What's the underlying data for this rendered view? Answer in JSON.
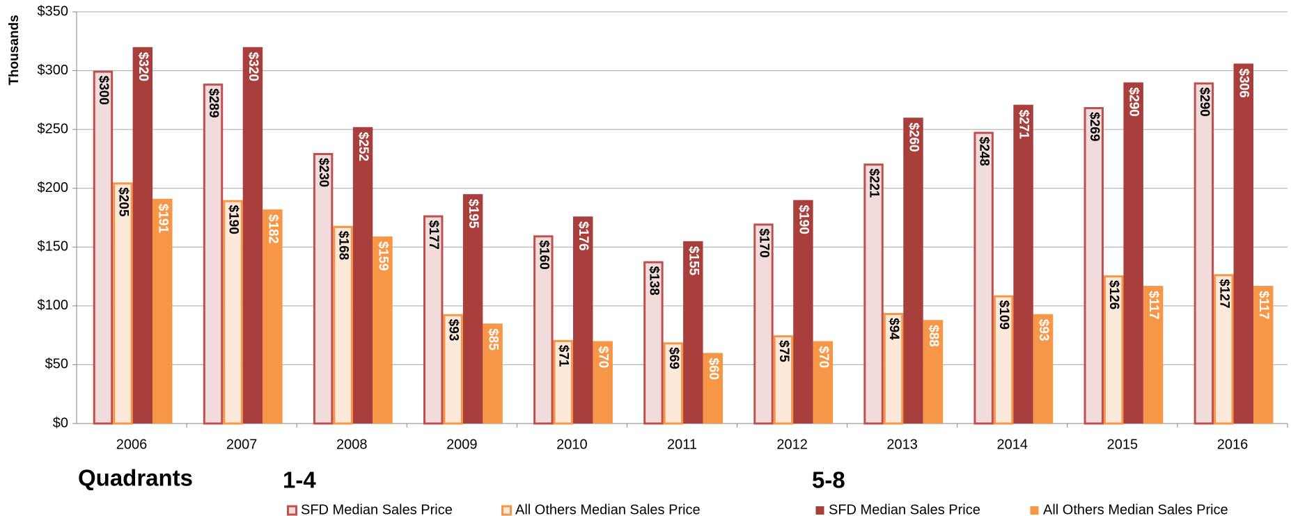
{
  "chart_data": {
    "type": "bar",
    "y_label": "Thousands",
    "legend_title": "Quadrants",
    "legend_groups": [
      "1-4",
      "5-8"
    ],
    "categories": [
      "2006",
      "2007",
      "2008",
      "2009",
      "2010",
      "2011",
      "2012",
      "2013",
      "2014",
      "2015",
      "2016"
    ],
    "series": [
      {
        "name": "SFD Median Sales Price",
        "color": "#f2dcdb",
        "edge_color": "#c0504d",
        "label_color": "#000000",
        "values": [
          300,
          289,
          230,
          177,
          160,
          138,
          170,
          221,
          248,
          269,
          290
        ],
        "value_labels": [
          "$300",
          "$289",
          "$230",
          "$177",
          "$160",
          "$138",
          "$170",
          "$221",
          "$248",
          "$269",
          "$290"
        ]
      },
      {
        "name": "All Others Median Sales Price",
        "color": "#fde9d9",
        "edge_color": "#f79646",
        "label_color": "#000000",
        "values": [
          205,
          190,
          168,
          93,
          71,
          69,
          75,
          94,
          109,
          126,
          127
        ],
        "value_labels": [
          "$205",
          "$190",
          "$168",
          "$93",
          "$71",
          "$69",
          "$75",
          "$94",
          "$109",
          "$126",
          "$127"
        ]
      },
      {
        "name": "SFD Median Sales Price",
        "color": "#a93f3c",
        "edge_color": "#a93f3c",
        "label_color": "#ffffff",
        "values": [
          320,
          320,
          252,
          195,
          176,
          155,
          190,
          260,
          271,
          290,
          306
        ],
        "value_labels": [
          "$320",
          "$320",
          "$252",
          "$195",
          "$176",
          "$155",
          "$190",
          "$260",
          "$271",
          "$290",
          "$306"
        ]
      },
      {
        "name": "All Others Median Sales Price",
        "color": "#f79646",
        "edge_color": "#f79646",
        "label_color": "#ffffff",
        "values": [
          191,
          182,
          159,
          85,
          70,
          60,
          70,
          88,
          93,
          117,
          117
        ],
        "value_labels": [
          "$191",
          "$182",
          "$159",
          "$85",
          "$70",
          "$60",
          "$70",
          "$88",
          "$93",
          "$117",
          "$117"
        ]
      }
    ],
    "ylim": [
      0,
      350
    ],
    "yticks": [
      {
        "value": 0,
        "label": "$0"
      },
      {
        "value": 50,
        "label": "$50"
      },
      {
        "value": 100,
        "label": "$100"
      },
      {
        "value": 150,
        "label": "$150"
      },
      {
        "value": 200,
        "label": "$200"
      },
      {
        "value": 250,
        "label": "$250"
      },
      {
        "value": 300,
        "label": "$300"
      },
      {
        "value": 350,
        "label": "$350"
      }
    ],
    "grid": true
  }
}
